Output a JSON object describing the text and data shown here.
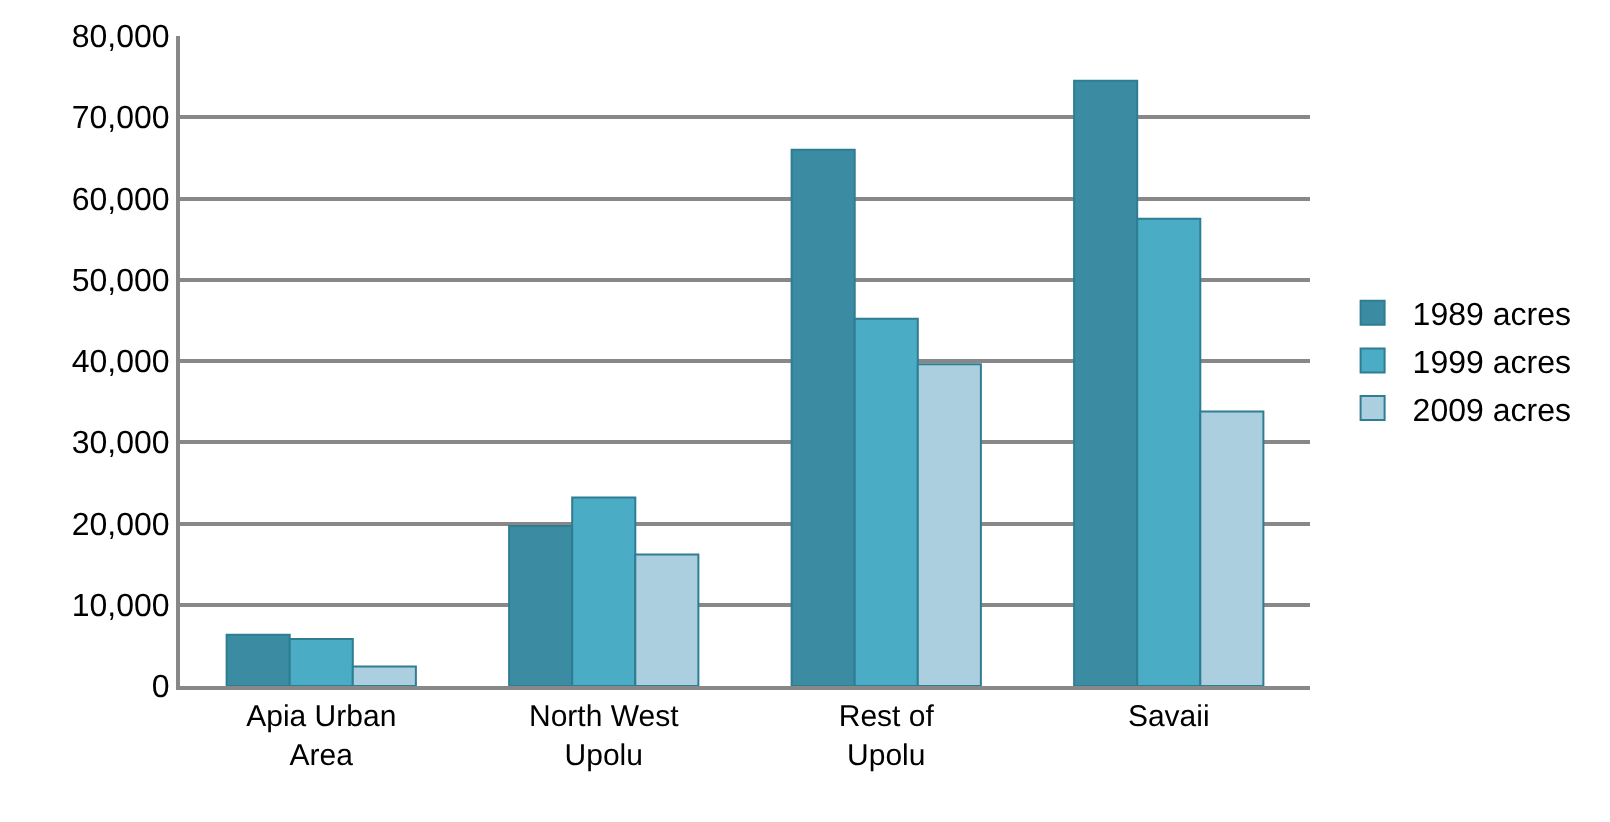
{
  "chart_data": {
    "type": "bar",
    "categories": [
      "Apia Urban Area",
      "North West Upolu",
      "Rest of Upolu",
      "Savaii"
    ],
    "series": [
      {
        "name": "1989 acres",
        "color": "#3b8ba3",
        "values": [
          6300,
          19700,
          66000,
          74500
        ]
      },
      {
        "name": "1999 acres",
        "color": "#4bacc6",
        "values": [
          5800,
          23200,
          45200,
          57500
        ]
      },
      {
        "name": "2009 acres",
        "color": "#abcfdf",
        "values": [
          2400,
          16200,
          39600,
          33800
        ]
      }
    ],
    "ylim": [
      0,
      80000
    ],
    "yticks": [
      {
        "value": 0,
        "label": "0"
      },
      {
        "value": 10000,
        "label": "10,000"
      },
      {
        "value": 20000,
        "label": "20,000"
      },
      {
        "value": 30000,
        "label": "30,000"
      },
      {
        "value": 40000,
        "label": "40,000"
      },
      {
        "value": 50000,
        "label": "50,000"
      },
      {
        "value": 60000,
        "label": "60,000"
      },
      {
        "value": 70000,
        "label": "70,000"
      },
      {
        "value": 80000,
        "label": "80,000"
      }
    ],
    "grid": "y",
    "legend": "right"
  }
}
